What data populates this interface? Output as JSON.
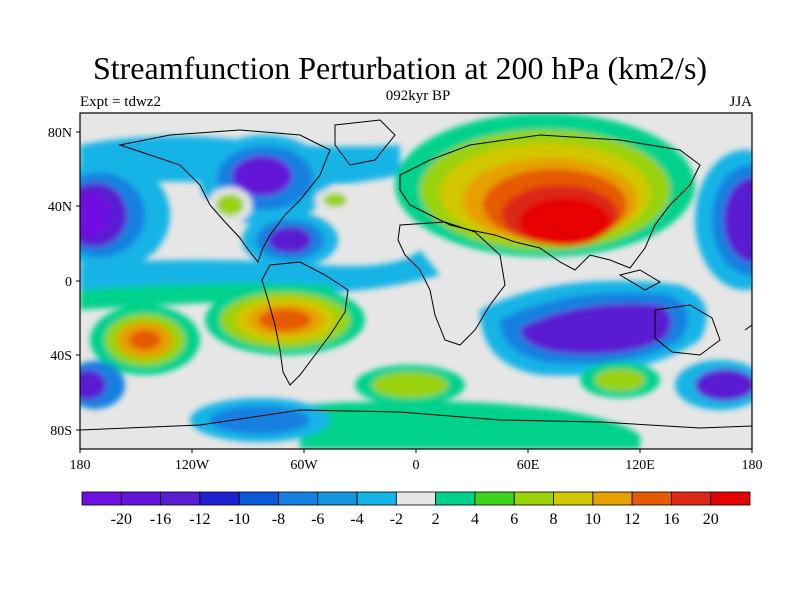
{
  "title": "Streamfunction Perturbation at 200 hPa (km2/s)",
  "left_string": "Expt = tdwz2",
  "center_string": "092kyr BP",
  "right_string": "JJA",
  "map": {
    "lat_ticks": [
      "80N",
      "40N",
      "0",
      "40S",
      "80S"
    ],
    "lon_ticks": [
      "180",
      "120W",
      "60W",
      "0",
      "60E",
      "120E",
      "180"
    ]
  },
  "colorbar": {
    "labels": [
      "-20",
      "-16",
      "-12",
      "-10",
      "-8",
      "-6",
      "-4",
      "-2",
      "2",
      "4",
      "6",
      "8",
      "10",
      "12",
      "16",
      "20"
    ],
    "colors": [
      "#7010e0",
      "#6414d8",
      "#5a1ed2",
      "#2020d0",
      "#0a5ad8",
      "#1480e0",
      "#1496dc",
      "#14b4e6",
      "#e6e6e6",
      "#00d28c",
      "#3cd21e",
      "#9ad20a",
      "#d2c800",
      "#e6a000",
      "#e65a00",
      "#dc2814",
      "#e60000"
    ]
  },
  "legend": {
    "-20": "",
    "-16": "",
    "-12": "",
    "-10": "",
    "-8": "",
    "-6": "",
    "-4": "",
    "-2": "",
    "2": "",
    "4": "",
    "6": "",
    "8": "",
    "10": "",
    "12": "",
    "16": "",
    "20": ""
  }
}
